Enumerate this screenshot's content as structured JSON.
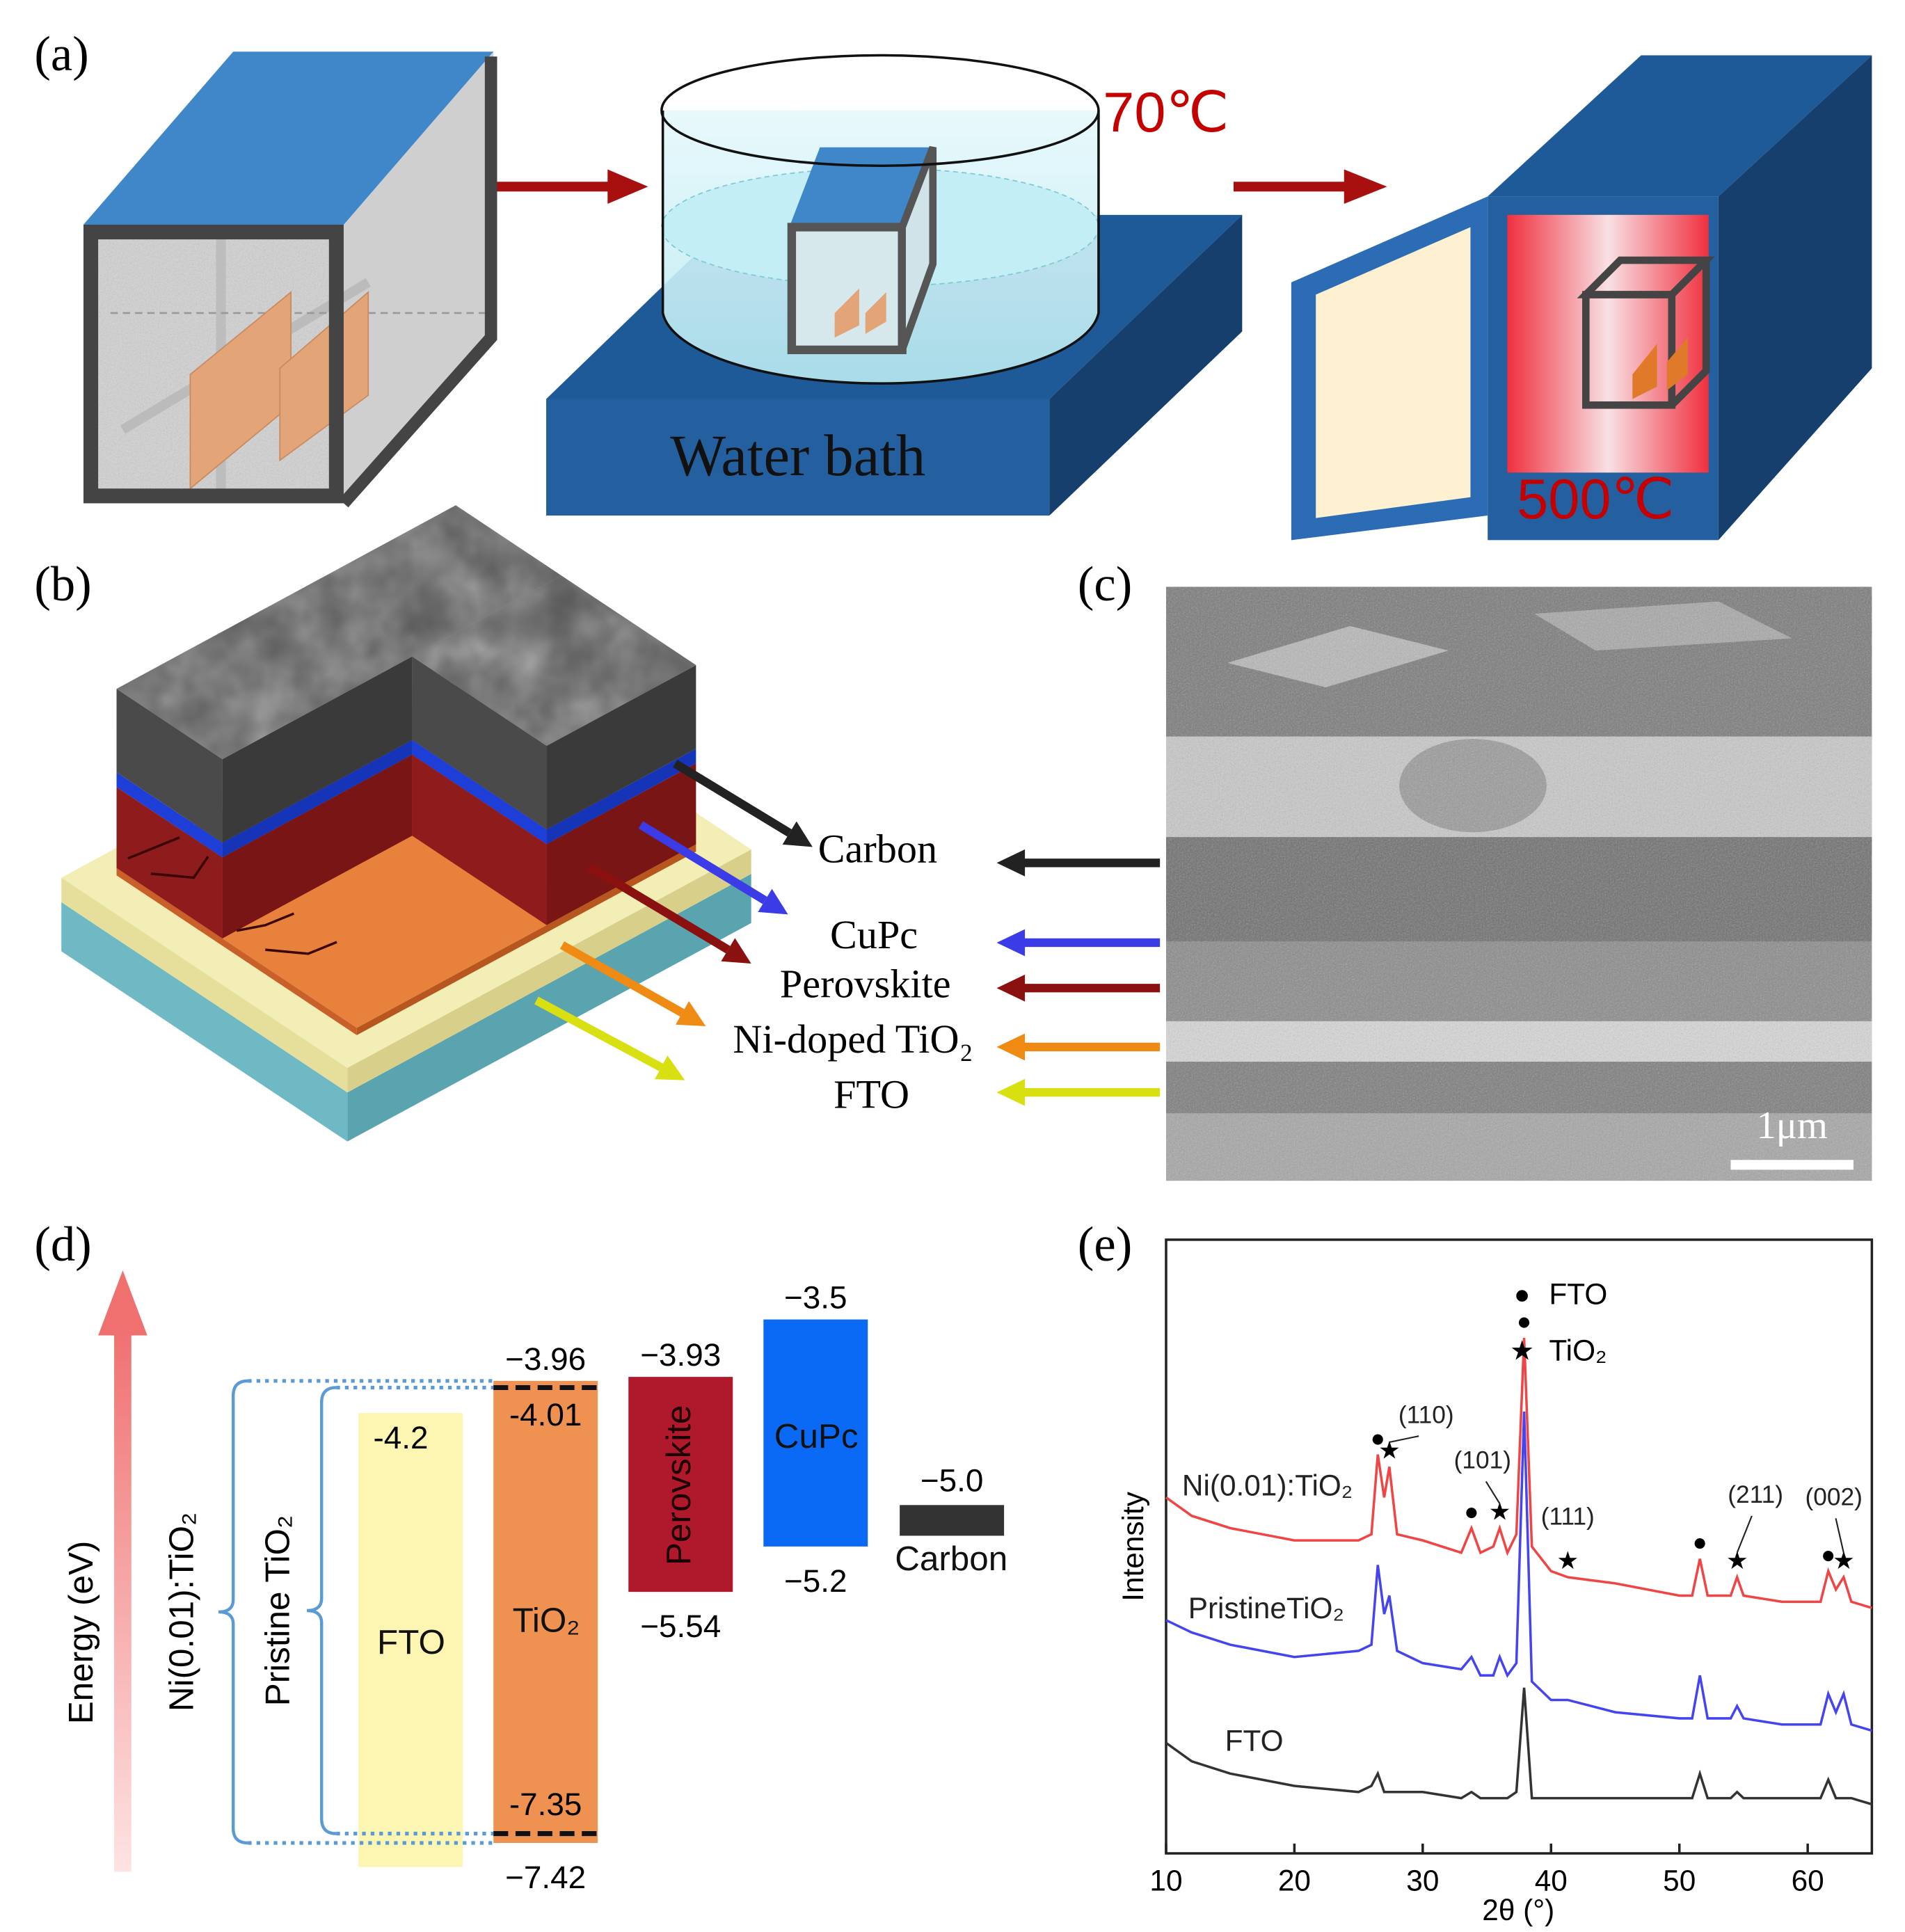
{
  "figure": {
    "panel_labels": [
      "(a)",
      "(b)",
      "(c)",
      "(d)",
      "(e)"
    ],
    "a": {
      "bath_temperature": "70℃",
      "bath_label": "Water bath",
      "anneal_temperature": "500℃"
    },
    "b": {
      "layers": [
        "Carbon",
        "CuPc",
        "Perovskite",
        "Ni-doped TiO₂",
        "FTO"
      ]
    },
    "c": {
      "scale_bar": "1μm"
    },
    "energy_diagram": {
      "axis_label": "Energy (eV)",
      "bands": [
        {
          "name": "FTO",
          "top": -4.2,
          "top_label": "-4.2",
          "bottom": -7.6,
          "color": "#fdf5b2"
        },
        {
          "name": "TiO₂",
          "top": -3.96,
          "top_label": "−3.96",
          "bottom": -7.42,
          "bottom_label": "−7.42",
          "color": "#ef9150",
          "inner_levels": [
            -4.01,
            -7.35
          ],
          "inner_labels": [
            "-4.01",
            "-7.35"
          ]
        },
        {
          "name": "Perovskite",
          "top": -3.93,
          "top_label": "−3.93",
          "bottom": -5.54,
          "bottom_label": "−5.54",
          "color": "#b0182c"
        },
        {
          "name": "CuPc",
          "top": -3.5,
          "top_label": "−3.5",
          "bottom": -5.2,
          "bottom_label": "−5.2",
          "color": "#0a6af5"
        },
        {
          "name": "Carbon",
          "level": -5.0,
          "level_label": "−5.0",
          "color": "#333333"
        }
      ],
      "braces": [
        {
          "name": "Ni(0.01):TiO₂",
          "top": -3.96,
          "bottom": -7.42
        },
        {
          "name": "Pristine TiO₂",
          "top": -4.01,
          "bottom": -7.35
        }
      ]
    }
  },
  "chart_data": {
    "type": "line",
    "xlabel": "2θ (°)",
    "ylabel": "Intensity",
    "xlim": [
      10,
      65
    ],
    "ylim": [
      0,
      100
    ],
    "xticks": [
      10,
      20,
      30,
      40,
      50,
      60
    ],
    "x": [
      10,
      12,
      15,
      20,
      25,
      26,
      26.5,
      27,
      27.4,
      28,
      30,
      33,
      33.8,
      34.5,
      35.5,
      36,
      36.6,
      37.3,
      37.9,
      38.5,
      40,
      41.3,
      45,
      50,
      51,
      51.6,
      52.2,
      54,
      54.5,
      55,
      58,
      61,
      61.6,
      62.2,
      62.8,
      63.4,
      65
    ],
    "series": [
      {
        "name": "Ni(0.01):TiO₂",
        "color": "#f04545",
        "values": [
          58,
          55,
          53,
          51,
          51,
          52,
          65,
          58,
          63,
          52,
          51,
          49,
          53,
          49,
          50,
          53,
          49,
          52,
          84,
          50,
          46,
          45,
          44,
          42,
          42,
          48,
          42,
          42,
          45,
          42,
          41,
          41,
          46,
          43,
          45,
          41,
          40
        ]
      },
      {
        "name": "PristineTiO₂",
        "color": "#4545f0",
        "values": [
          38,
          36,
          34,
          32,
          33,
          34,
          47,
          39,
          42,
          33,
          31,
          30,
          32,
          29,
          29,
          32,
          29,
          31,
          72,
          28,
          25,
          25,
          23,
          22,
          22,
          29,
          22,
          22,
          24,
          22,
          21,
          21,
          26,
          23,
          26,
          21,
          20
        ]
      },
      {
        "name": "FTO",
        "color": "#333333",
        "values": [
          18,
          15,
          13,
          11,
          10,
          11,
          13,
          10,
          10,
          10,
          10,
          9,
          10,
          9,
          9,
          9,
          9,
          10,
          27,
          9,
          9,
          9,
          9,
          9,
          9,
          13,
          9,
          9,
          10,
          9,
          9,
          9,
          12,
          9,
          9,
          9,
          8
        ]
      }
    ],
    "legend": [
      {
        "symbol": "●",
        "label": "FTO",
        "peaks": [
          26.5,
          33.8,
          37.9,
          51.6,
          61.6
        ]
      },
      {
        "symbol": "★",
        "label": "TiO₂",
        "peaks": [
          27.4,
          36,
          41.3,
          54.5,
          62.8
        ],
        "peak_labels": [
          "(110)",
          "(101)",
          "(111)",
          "(211)",
          "(002)"
        ]
      }
    ]
  }
}
